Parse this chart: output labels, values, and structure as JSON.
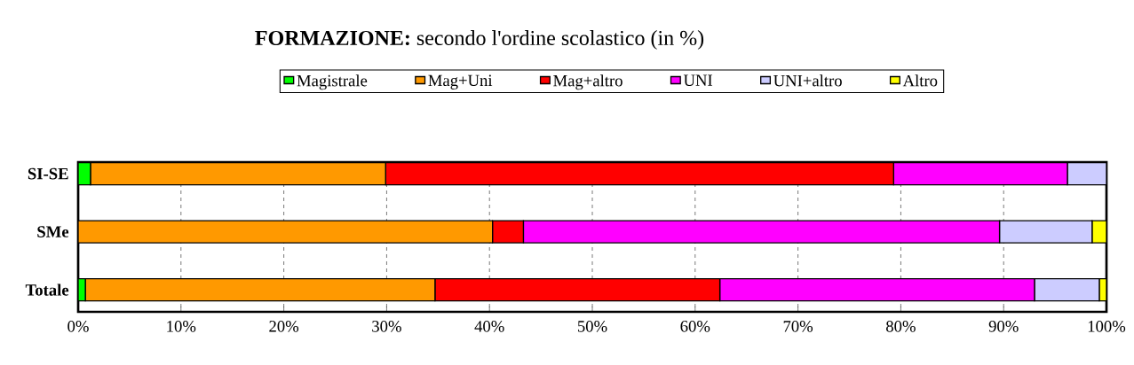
{
  "chart_data": {
    "type": "bar",
    "orientation": "horizontal",
    "stacked": true,
    "title": "**FORMAZIONE:** secondo l'ordine scolastico (in %)",
    "categories": [
      "SI-SE",
      "SMe",
      "Totale"
    ],
    "series": [
      {
        "name": "Magistrale",
        "color": "#00ff00",
        "values": [
          1.2,
          0,
          0.7
        ]
      },
      {
        "name": "Mag+Uni",
        "color": "#ff9900",
        "values": [
          28.7,
          40.3,
          34.0
        ]
      },
      {
        "name": "Mag+altro",
        "color": "#ff0000",
        "values": [
          49.4,
          3.0,
          27.7
        ]
      },
      {
        "name": "UNI",
        "color": "#ff00ff",
        "values": [
          16.9,
          46.3,
          30.6
        ]
      },
      {
        "name": "UNI+altro",
        "color": "#ccccff",
        "values": [
          3.8,
          9.0,
          6.3
        ]
      },
      {
        "name": "Altro",
        "color": "#ffff00",
        "values": [
          0,
          1.4,
          0.7
        ]
      }
    ],
    "xlim": [
      0,
      100
    ],
    "xticks": [
      {
        "value": 0,
        "label": "0%"
      },
      {
        "value": 10,
        "label": "10%"
      },
      {
        "value": 20,
        "label": "20%"
      },
      {
        "value": 30,
        "label": "30%"
      },
      {
        "value": 40,
        "label": "40%"
      },
      {
        "value": 50,
        "label": "50%"
      },
      {
        "value": 60,
        "label": "60%"
      },
      {
        "value": 70,
        "label": "70%"
      },
      {
        "value": 80,
        "label": "80%"
      },
      {
        "value": 90,
        "label": "90%"
      },
      {
        "value": 100,
        "label": "100%"
      }
    ],
    "grid": "x",
    "legend": "top"
  }
}
